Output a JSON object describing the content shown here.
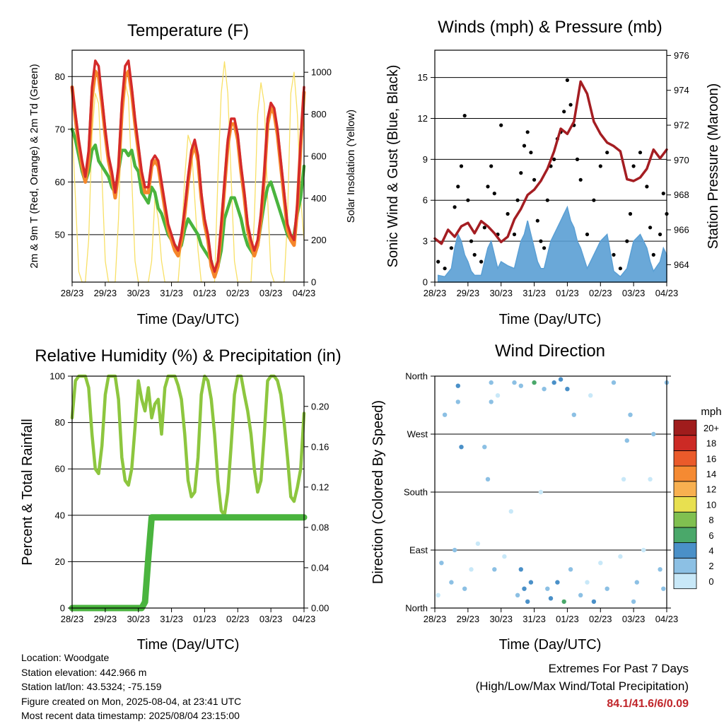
{
  "days": [
    "28/23",
    "29/23",
    "30/23",
    "31/23",
    "01/23",
    "02/23",
    "03/23",
    "04/23"
  ],
  "xlabel": "Time (Day/UTC)",
  "chart_data": [
    {
      "type": "line",
      "title": "Temperature (F)",
      "ylabel": "2m & 9m T (Red, Orange) & 2m Td (Green)",
      "y2label": "Solar Insolation (Yellow)",
      "ylim": [
        41,
        85
      ],
      "y2lim": [
        0,
        1105
      ],
      "yticks": [
        50,
        60,
        70,
        80
      ],
      "y2ticks": [
        0,
        200,
        400,
        600,
        800,
        1000
      ],
      "x": [
        0.0,
        0.1,
        0.2,
        0.3,
        0.4,
        0.5,
        0.6,
        0.7,
        0.8,
        0.9,
        1.0,
        1.1,
        1.2,
        1.3,
        1.4,
        1.5,
        1.6,
        1.7,
        1.8,
        1.9,
        2.0,
        2.1,
        2.2,
        2.3,
        2.4,
        2.5,
        2.6,
        2.7,
        2.8,
        2.9,
        3.0,
        3.1,
        3.2,
        3.3,
        3.4,
        3.5,
        3.6,
        3.7,
        3.8,
        3.9,
        4.0,
        4.1,
        4.2,
        4.3,
        4.4,
        4.5,
        4.6,
        4.7,
        4.8,
        4.9,
        5.0,
        5.1,
        5.2,
        5.3,
        5.4,
        5.5,
        5.6,
        5.7,
        5.8,
        5.9,
        6.0,
        6.1,
        6.2,
        6.3,
        6.4,
        6.5,
        6.6,
        6.7,
        6.8,
        6.9,
        7.0
      ],
      "series": [
        {
          "name": "2m T",
          "color": "#d42a2a",
          "values": [
            78,
            73,
            68,
            64,
            61,
            66,
            78,
            83,
            82,
            76,
            70,
            65,
            62,
            58,
            63,
            75,
            82,
            83,
            78,
            72,
            67,
            62,
            59,
            59,
            64,
            65,
            64,
            60,
            56,
            52,
            50,
            48,
            47,
            50,
            55,
            61,
            66,
            68,
            65,
            58,
            53,
            50,
            45,
            43,
            45,
            52,
            60,
            68,
            72,
            72,
            69,
            63,
            58,
            52,
            49,
            47,
            49,
            54,
            62,
            72,
            75,
            74,
            70,
            64,
            58,
            52,
            50,
            49,
            56,
            68,
            78
          ]
        },
        {
          "name": "9m T",
          "color": "#f5862a",
          "values": [
            78,
            72,
            67,
            63,
            60,
            64,
            76,
            81,
            80,
            75,
            69,
            64,
            61,
            57,
            62,
            73,
            80,
            81,
            77,
            71,
            66,
            61,
            58,
            58,
            63,
            64,
            63,
            59,
            55,
            51,
            49,
            47,
            46,
            49,
            54,
            60,
            65,
            67,
            64,
            57,
            52,
            49,
            44,
            42,
            44,
            51,
            59,
            67,
            71,
            71,
            68,
            62,
            57,
            51,
            48,
            46,
            48,
            53,
            61,
            71,
            74,
            73,
            69,
            63,
            57,
            51,
            49,
            48,
            55,
            67,
            77
          ]
        },
        {
          "name": "2m Td",
          "color": "#4ab43e",
          "values": [
            70,
            68,
            65,
            62,
            60,
            62,
            66,
            67,
            64,
            63,
            62,
            61,
            59,
            58,
            62,
            66,
            66,
            65,
            66,
            63,
            62,
            58,
            57,
            56,
            59,
            58,
            55,
            54,
            52,
            50,
            49,
            48,
            47,
            48,
            51,
            53,
            52,
            51,
            50,
            48,
            47,
            46,
            45,
            42,
            44,
            47,
            53,
            55,
            57,
            57,
            55,
            53,
            50,
            48,
            47,
            46,
            48,
            52,
            56,
            59,
            60,
            58,
            56,
            54,
            52,
            50,
            49,
            50,
            54,
            57,
            63
          ]
        },
        {
          "name": "Solar Insolation",
          "color": "#f8e066",
          "values": [
            750,
            400,
            50,
            0,
            0,
            200,
            700,
            900,
            850,
            500,
            100,
            0,
            0,
            0,
            300,
            800,
            950,
            880,
            500,
            100,
            0,
            0,
            0,
            0,
            100,
            400,
            300,
            100,
            0,
            0,
            0,
            0,
            0,
            200,
            500,
            700,
            650,
            400,
            150,
            0,
            0,
            0,
            0,
            0,
            500,
            900,
            1050,
            900,
            500,
            100,
            0,
            0,
            0,
            0,
            0,
            300,
            800,
            950,
            850,
            400,
            50,
            0,
            0,
            0,
            0,
            300,
            900,
            1000,
            800,
            400,
            200
          ]
        }
      ]
    },
    {
      "type": "scatter",
      "title": "Winds (mph) & Pressure (mb)",
      "ylabel": "Sonic Wind & Gust (Blue, Black)",
      "y2label": "Station Pressure (Maroon)",
      "ylim": [
        0,
        17
      ],
      "y2lim": [
        963.0,
        976.3
      ],
      "yticks": [
        0,
        3,
        6,
        9,
        12,
        15
      ],
      "y2ticks": [
        964,
        966,
        968,
        970,
        972,
        974,
        976
      ],
      "series": [
        {
          "name": "Station Pressure",
          "color": "#a41d22",
          "x": [
            0.0,
            0.2,
            0.4,
            0.6,
            0.8,
            1.0,
            1.2,
            1.4,
            1.6,
            1.8,
            2.0,
            2.2,
            2.4,
            2.6,
            2.8,
            3.0,
            3.2,
            3.4,
            3.6,
            3.8,
            4.0,
            4.2,
            4.4,
            4.6,
            4.8,
            5.0,
            5.2,
            5.4,
            5.6,
            5.8,
            6.0,
            6.2,
            6.4,
            6.6,
            6.8,
            7.0
          ],
          "values": [
            965.5,
            965.2,
            966.0,
            965.6,
            966.2,
            966.4,
            965.8,
            966.5,
            966.2,
            965.8,
            965.3,
            965.6,
            966.6,
            967.2,
            968.0,
            968.3,
            968.8,
            969.5,
            970.5,
            971.8,
            971.5,
            972.2,
            974.5,
            973.8,
            972.2,
            971.5,
            971.0,
            970.8,
            970.5,
            968.9,
            968.8,
            969.0,
            969.5,
            970.6,
            970.1,
            970.6
          ]
        },
        {
          "name": "Gust",
          "color": "#000000",
          "x": [
            0.1,
            0.3,
            0.5,
            0.6,
            0.7,
            0.8,
            0.9,
            1.0,
            1.1,
            1.2,
            1.4,
            1.5,
            1.6,
            1.7,
            1.8,
            1.9,
            2.0,
            2.2,
            2.4,
            2.5,
            2.6,
            2.7,
            2.8,
            2.9,
            3.0,
            3.1,
            3.2,
            3.3,
            3.4,
            3.5,
            3.6,
            3.7,
            3.8,
            3.9,
            4.0,
            4.1,
            4.2,
            4.3,
            4.4,
            4.6,
            4.8,
            5.0,
            5.2,
            5.4,
            5.6,
            5.8,
            5.9,
            6.0,
            6.2,
            6.4,
            6.5,
            6.6,
            6.8,
            6.9,
            7.0
          ],
          "values": [
            1.5,
            1.0,
            2.5,
            5.5,
            7.0,
            8.5,
            12.2,
            6.0,
            3.0,
            2.0,
            1.5,
            4.0,
            7.0,
            8.5,
            6.5,
            3.5,
            11.5,
            5.0,
            3.5,
            6.0,
            8.0,
            10.0,
            11.0,
            9.5,
            7.5,
            4.5,
            3.0,
            2.5,
            6.0,
            8.5,
            9.0,
            10.5,
            11.0,
            12.5,
            14.8,
            13.0,
            11.5,
            9.0,
            7.5,
            3.5,
            6.0,
            8.5,
            9.5,
            2.0,
            1.0,
            3.0,
            5.0,
            8.5,
            9.5,
            7.0,
            4.0,
            2.0,
            3.5,
            6.5,
            5.0
          ]
        },
        {
          "name": "Wind",
          "color": "#5a9fd4",
          "x": [
            0.1,
            0.3,
            0.5,
            0.6,
            0.7,
            0.8,
            0.9,
            1.0,
            1.1,
            1.2,
            1.4,
            1.5,
            1.6,
            1.7,
            1.8,
            1.9,
            2.0,
            2.2,
            2.4,
            2.5,
            2.6,
            2.7,
            2.8,
            2.9,
            3.0,
            3.1,
            3.2,
            3.3,
            3.4,
            3.5,
            3.6,
            3.7,
            3.8,
            3.9,
            4.0,
            4.1,
            4.2,
            4.3,
            4.4,
            4.6,
            4.8,
            5.0,
            5.2,
            5.4,
            5.6,
            5.8,
            5.9,
            6.0,
            6.2,
            6.4,
            6.5,
            6.6,
            6.8,
            6.9,
            7.0
          ],
          "values": [
            0.5,
            0.4,
            1.0,
            2.5,
            3.5,
            3.0,
            2.0,
            1.5,
            0.8,
            0.5,
            0.5,
            1.5,
            2.5,
            3.0,
            2.0,
            1.0,
            1.5,
            1.2,
            1.0,
            2.0,
            3.0,
            3.5,
            4.5,
            3.5,
            2.5,
            1.5,
            1.0,
            1.0,
            2.0,
            3.0,
            3.5,
            4.0,
            4.5,
            5.0,
            5.5,
            4.5,
            4.0,
            3.0,
            2.5,
            1.0,
            2.0,
            3.0,
            3.5,
            0.8,
            0.4,
            1.0,
            2.0,
            3.0,
            3.5,
            2.5,
            1.5,
            0.8,
            1.5,
            2.5,
            2.0
          ]
        }
      ]
    },
    {
      "type": "line",
      "title": "Relative Humidity (%) & Precipitation (in)",
      "ylabel": "Percent & Total Rainfall",
      "ylim": [
        0,
        100
      ],
      "y2lim": [
        0,
        0.23
      ],
      "yticks": [
        0,
        20,
        40,
        60,
        80,
        100
      ],
      "y2ticks": [
        "0.00",
        "0.04",
        "0.08",
        "0.12",
        "0.16",
        "0.20"
      ],
      "x": [
        0.0,
        0.1,
        0.2,
        0.3,
        0.4,
        0.5,
        0.6,
        0.7,
        0.8,
        0.9,
        1.0,
        1.1,
        1.2,
        1.3,
        1.4,
        1.5,
        1.6,
        1.7,
        1.8,
        1.9,
        2.0,
        2.1,
        2.2,
        2.3,
        2.4,
        2.5,
        2.6,
        2.7,
        2.8,
        2.9,
        3.0,
        3.1,
        3.2,
        3.3,
        3.4,
        3.5,
        3.6,
        3.7,
        3.8,
        3.9,
        4.0,
        4.1,
        4.2,
        4.3,
        4.4,
        4.5,
        4.6,
        4.7,
        4.8,
        4.9,
        5.0,
        5.1,
        5.2,
        5.3,
        5.4,
        5.5,
        5.6,
        5.7,
        5.8,
        5.9,
        6.0,
        6.1,
        6.2,
        6.3,
        6.4,
        6.5,
        6.6,
        6.7,
        6.8,
        6.9,
        7.0
      ],
      "series": [
        {
          "name": "Relative Humidity",
          "color": "#8dc63f",
          "values": [
            82,
            98,
            100,
            100,
            100,
            95,
            75,
            60,
            58,
            70,
            92,
            100,
            100,
            100,
            90,
            65,
            55,
            53,
            60,
            78,
            98,
            90,
            85,
            95,
            82,
            88,
            90,
            75,
            95,
            100,
            100,
            100,
            96,
            90,
            75,
            55,
            48,
            50,
            65,
            92,
            100,
            98,
            90,
            75,
            55,
            42,
            40,
            50,
            70,
            92,
            100,
            100,
            92,
            85,
            75,
            60,
            50,
            55,
            75,
            98,
            100,
            100,
            98,
            92,
            80,
            65,
            48,
            46,
            52,
            60,
            84
          ]
        },
        {
          "name": "Total Precipitation",
          "color": "#4ab43e",
          "values": [
            0,
            0,
            0,
            0,
            0,
            0,
            0,
            0,
            0,
            0,
            0,
            0,
            0,
            0,
            0,
            0,
            0,
            0,
            0,
            0,
            0,
            0,
            0.006,
            0.05,
            0.09,
            0.09,
            0.09,
            0.09,
            0.09,
            0.09,
            0.09,
            0.09,
            0.09,
            0.09,
            0.09,
            0.09,
            0.09,
            0.09,
            0.09,
            0.09,
            0.09,
            0.09,
            0.09,
            0.09,
            0.09,
            0.09,
            0.09,
            0.09,
            0.09,
            0.09,
            0.09,
            0.09,
            0.09,
            0.09,
            0.09,
            0.09,
            0.09,
            0.09,
            0.09,
            0.09,
            0.09,
            0.09,
            0.09,
            0.09,
            0.09,
            0.09,
            0.09,
            0.09,
            0.09,
            0.09,
            0.09
          ]
        }
      ]
    },
    {
      "type": "scatter",
      "title": "Wind Direction",
      "ylabel": "Direction (Colored By Speed)",
      "ylim": [
        0,
        360
      ],
      "yticklabels": [
        "North",
        "East",
        "South",
        "West",
        "North"
      ],
      "colorbar_title": "mph",
      "colorbar_labels": [
        "0",
        "2",
        "4",
        "6",
        "8",
        "10",
        "12",
        "14",
        "16",
        "18",
        "20+"
      ],
      "colorbar_colors": [
        "#c8e8f8",
        "#8cc0e4",
        "#4a90c8",
        "#4aa86a",
        "#80c050",
        "#e8e050",
        "#f8b050",
        "#f58a32",
        "#ea5a2a",
        "#cc2a25",
        "#a01c1c"
      ],
      "x": [
        0.1,
        0.2,
        0.3,
        0.5,
        0.6,
        0.7,
        0.7,
        0.8,
        0.9,
        1.1,
        1.3,
        1.5,
        1.6,
        1.7,
        1.7,
        1.8,
        1.9,
        2.1,
        2.3,
        2.4,
        2.5,
        2.6,
        2.6,
        2.7,
        2.8,
        2.9,
        3.0,
        3.2,
        3.3,
        3.4,
        3.5,
        3.6,
        3.7,
        3.8,
        3.9,
        4.0,
        4.1,
        4.2,
        4.4,
        4.6,
        4.7,
        4.8,
        5.0,
        5.2,
        5.4,
        5.6,
        5.7,
        5.8,
        5.9,
        6.0,
        6.1,
        6.3,
        6.5,
        6.6,
        6.8,
        6.9,
        7.0
      ],
      "values": [
        20,
        70,
        300,
        40,
        90,
        320,
        345,
        250,
        30,
        60,
        100,
        250,
        200,
        320,
        350,
        60,
        330,
        80,
        150,
        350,
        20,
        60,
        345,
        30,
        10,
        40,
        350,
        180,
        340,
        30,
        15,
        350,
        40,
        355,
        10,
        340,
        60,
        300,
        20,
        40,
        330,
        10,
        70,
        30,
        350,
        80,
        200,
        260,
        300,
        10,
        40,
        90,
        200,
        270,
        60,
        30,
        350
      ],
      "speeds": [
        1,
        2,
        2,
        3,
        3,
        3,
        4,
        4,
        2,
        1,
        1,
        3,
        3,
        2,
        2,
        2,
        1,
        1,
        1,
        2,
        3,
        4,
        3,
        5,
        4,
        4,
        6,
        1,
        2,
        3,
        4,
        4,
        5,
        4,
        6,
        4,
        2,
        3,
        3,
        1,
        1,
        4,
        1,
        2,
        3,
        1,
        1,
        3,
        3,
        3,
        2,
        1,
        1,
        2,
        2,
        3,
        3
      ]
    }
  ],
  "info": {
    "location": "Location: Woodgate",
    "elevation": "Station elevation: 442.966 m",
    "latlon": "Station lat/lon: 43.5324; -75.159",
    "created": "Figure created on Mon, 2025-08-04, at 23:41 UTC",
    "recent": "Most recent data timestamp: 2025/08/04 23:15:00"
  },
  "extremes": {
    "title": "Extremes For Past 7 Days",
    "subtitle": "(High/Low/Max Wind/Total Precipitation)",
    "values": "84.1/41.6/6/0.09"
  }
}
